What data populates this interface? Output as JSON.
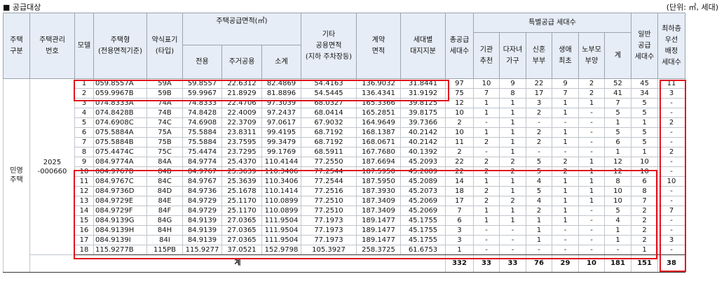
{
  "title": "■ 공급대상",
  "unit_note": "(단위: ㎡, 세대)",
  "headers": {
    "type": "주택\n구분",
    "mgmt_no": "주택관리\n번호",
    "model": "모델",
    "house_type": "주택형\n(전용면적기준)",
    "type_label": "약식표기\n(타입)",
    "supply_area": "주택공급면적(㎡)",
    "exclusive": "전용",
    "residential_common": "주거공용",
    "subtotal": "소계",
    "other_common": "기타\n공용면적\n(지하 주차장등)",
    "contract_area": "계약\n면적",
    "land_share": "세대별\n대지지분",
    "total_supply": "총공급\n세대수",
    "special_supply": "특별공급 세대수",
    "institution": "기관\n추천",
    "multi_child": "다자녀\n가구",
    "newlywed": "신혼\n부부",
    "first_life": "생애\n최초",
    "elderly_parent": "노부모\n부양",
    "special_total": "계",
    "general": "일반\n공급\n세대수",
    "lowest_floor": "최하층\n우선\n배정\n세대수"
  },
  "group": {
    "type": "민영\n주택",
    "mgmt_no": "2025\n-000660"
  },
  "rows": [
    {
      "model": "1",
      "house_type": "059.8557A",
      "type_label": "59A",
      "exclusive": "59.8557",
      "residential_common": "22.6312",
      "subtotal": "82.4869",
      "other_common": "54.4163",
      "contract_area": "136.9032",
      "land_share": "31.8441",
      "total_supply": "97",
      "institution": "10",
      "multi_child": "9",
      "newlywed": "22",
      "first_life": "9",
      "elderly_parent": "2",
      "special_total": "52",
      "general": "45",
      "lowest_floor": "11"
    },
    {
      "model": "2",
      "house_type": "059.9967B",
      "type_label": "59B",
      "exclusive": "59.9967",
      "residential_common": "21.8929",
      "subtotal": "81.8896",
      "other_common": "54.5445",
      "contract_area": "136.4341",
      "land_share": "31.9192",
      "total_supply": "75",
      "institution": "7",
      "multi_child": "8",
      "newlywed": "17",
      "first_life": "7",
      "elderly_parent": "2",
      "special_total": "41",
      "general": "34",
      "lowest_floor": "3"
    },
    {
      "model": "3",
      "house_type": "074.8333A",
      "type_label": "74A",
      "exclusive": "74.8333",
      "residential_common": "22.4706",
      "subtotal": "97.3039",
      "other_common": "68.0327",
      "contract_area": "165.3366",
      "land_share": "39.8125",
      "total_supply": "12",
      "institution": "1",
      "multi_child": "1",
      "newlywed": "3",
      "first_life": "1",
      "elderly_parent": "1",
      "special_total": "7",
      "general": "5",
      "lowest_floor": "-"
    },
    {
      "model": "4",
      "house_type": "074.8428B",
      "type_label": "74B",
      "exclusive": "74.8428",
      "residential_common": "22.4009",
      "subtotal": "97.2437",
      "other_common": "68.0414",
      "contract_area": "165.2851",
      "land_share": "39.8175",
      "total_supply": "10",
      "institution": "1",
      "multi_child": "1",
      "newlywed": "2",
      "first_life": "1",
      "elderly_parent": "-",
      "special_total": "5",
      "general": "5",
      "lowest_floor": "-"
    },
    {
      "model": "5",
      "house_type": "074.6908C",
      "type_label": "74C",
      "exclusive": "74.6908",
      "residential_common": "22.3709",
      "subtotal": "97.0617",
      "other_common": "67.9032",
      "contract_area": "164.9649",
      "land_share": "39.7366",
      "total_supply": "2",
      "institution": "-",
      "multi_child": "1",
      "newlywed": "-",
      "first_life": "-",
      "elderly_parent": "-",
      "special_total": "1",
      "general": "1",
      "lowest_floor": "2"
    },
    {
      "model": "6",
      "house_type": "075.5884A",
      "type_label": "75A",
      "exclusive": "75.5884",
      "residential_common": "23.8311",
      "subtotal": "99.4195",
      "other_common": "68.7192",
      "contract_area": "168.1387",
      "land_share": "40.2142",
      "total_supply": "10",
      "institution": "1",
      "multi_child": "1",
      "newlywed": "2",
      "first_life": "1",
      "elderly_parent": "-",
      "special_total": "5",
      "general": "5",
      "lowest_floor": "-"
    },
    {
      "model": "7",
      "house_type": "075.5884B",
      "type_label": "75B",
      "exclusive": "75.5884",
      "residential_common": "23.7595",
      "subtotal": "99.3479",
      "other_common": "68.7192",
      "contract_area": "168.0671",
      "land_share": "40.2142",
      "total_supply": "11",
      "institution": "2",
      "multi_child": "1",
      "newlywed": "2",
      "first_life": "1",
      "elderly_parent": "-",
      "special_total": "6",
      "general": "5",
      "lowest_floor": "-"
    },
    {
      "model": "8",
      "house_type": "075.4474C",
      "type_label": "75C",
      "exclusive": "75.4474",
      "residential_common": "23.7295",
      "subtotal": "99.1769",
      "other_common": "68.5911",
      "contract_area": "167.7680",
      "land_share": "40.1392",
      "total_supply": "2",
      "institution": "-",
      "multi_child": "1",
      "newlywed": "-",
      "first_life": "-",
      "elderly_parent": "-",
      "special_total": "1",
      "general": "1",
      "lowest_floor": "2"
    },
    {
      "model": "9",
      "house_type": "084.9774A",
      "type_label": "84A",
      "exclusive": "84.9774",
      "residential_common": "25.4370",
      "subtotal": "110.4144",
      "other_common": "77.2550",
      "contract_area": "187.6694",
      "land_share": "45.2093",
      "total_supply": "22",
      "institution": "2",
      "multi_child": "2",
      "newlywed": "5",
      "first_life": "2",
      "elderly_parent": "1",
      "special_total": "12",
      "general": "10",
      "lowest_floor": "-"
    },
    {
      "model": "10",
      "house_type": "084.9767B",
      "type_label": "84B",
      "exclusive": "84.9767",
      "residential_common": "25.3639",
      "subtotal": "110.3406",
      "other_common": "77.2544",
      "contract_area": "187.5950",
      "land_share": "45.2089",
      "total_supply": "22",
      "institution": "2",
      "multi_child": "2",
      "newlywed": "5",
      "first_life": "2",
      "elderly_parent": "1",
      "special_total": "12",
      "general": "10",
      "lowest_floor": "-"
    },
    {
      "model": "11",
      "house_type": "084.9767C",
      "type_label": "84C",
      "exclusive": "84.9767",
      "residential_common": "25.3639",
      "subtotal": "110.3406",
      "other_common": "77.2544",
      "contract_area": "187.5950",
      "land_share": "45.2089",
      "total_supply": "14",
      "institution": "1",
      "multi_child": "1",
      "newlywed": "4",
      "first_life": "1",
      "elderly_parent": "1",
      "special_total": "8",
      "general": "6",
      "lowest_floor": "10"
    },
    {
      "model": "12",
      "house_type": "084.9736D",
      "type_label": "84D",
      "exclusive": "84.9736",
      "residential_common": "25.1678",
      "subtotal": "110.1414",
      "other_common": "77.2516",
      "contract_area": "187.3930",
      "land_share": "45.2073",
      "total_supply": "18",
      "institution": "2",
      "multi_child": "1",
      "newlywed": "5",
      "first_life": "1",
      "elderly_parent": "1",
      "special_total": "10",
      "general": "8",
      "lowest_floor": "-"
    },
    {
      "model": "13",
      "house_type": "084.9729E",
      "type_label": "84E",
      "exclusive": "84.9729",
      "residential_common": "25.1170",
      "subtotal": "110.0899",
      "other_common": "77.2510",
      "contract_area": "187.3409",
      "land_share": "45.2069",
      "total_supply": "17",
      "institution": "2",
      "multi_child": "2",
      "newlywed": "4",
      "first_life": "1",
      "elderly_parent": "1",
      "special_total": "10",
      "general": "7",
      "lowest_floor": "-"
    },
    {
      "model": "14",
      "house_type": "084.9729F",
      "type_label": "84F",
      "exclusive": "84.9729",
      "residential_common": "25.1170",
      "subtotal": "110.0899",
      "other_common": "77.2510",
      "contract_area": "187.3409",
      "land_share": "45.2069",
      "total_supply": "7",
      "institution": "1",
      "multi_child": "1",
      "newlywed": "2",
      "first_life": "1",
      "elderly_parent": "-",
      "special_total": "5",
      "general": "2",
      "lowest_floor": "7"
    },
    {
      "model": "15",
      "house_type": "084.9139G",
      "type_label": "84G",
      "exclusive": "84.9139",
      "residential_common": "27.0365",
      "subtotal": "111.9504",
      "other_common": "77.1973",
      "contract_area": "189.1477",
      "land_share": "45.1755",
      "total_supply": "6",
      "institution": "1",
      "multi_child": "1",
      "newlywed": "1",
      "first_life": "1",
      "elderly_parent": "-",
      "special_total": "4",
      "general": "2",
      "lowest_floor": "-"
    },
    {
      "model": "16",
      "house_type": "084.9139H",
      "type_label": "84H",
      "exclusive": "84.9139",
      "residential_common": "27.0365",
      "subtotal": "111.9504",
      "other_common": "77.1973",
      "contract_area": "189.1477",
      "land_share": "45.1755",
      "total_supply": "3",
      "institution": "-",
      "multi_child": "-",
      "newlywed": "1",
      "first_life": "-",
      "elderly_parent": "-",
      "special_total": "1",
      "general": "2",
      "lowest_floor": "-"
    },
    {
      "model": "17",
      "house_type": "084.9139I",
      "type_label": "84I",
      "exclusive": "84.9139",
      "residential_common": "27.0365",
      "subtotal": "111.9504",
      "other_common": "77.1973",
      "contract_area": "189.1477",
      "land_share": "45.1755",
      "total_supply": "3",
      "institution": "-",
      "multi_child": "-",
      "newlywed": "1",
      "first_life": "-",
      "elderly_parent": "-",
      "special_total": "1",
      "general": "2",
      "lowest_floor": "3"
    },
    {
      "model": "18",
      "house_type": "115.9277B",
      "type_label": "115PB",
      "exclusive": "115.9277",
      "residential_common": "37.0521",
      "subtotal": "152.9798",
      "other_common": "105.3927",
      "contract_area": "258.3725",
      "land_share": "61.6753",
      "total_supply": "1",
      "institution": "-",
      "multi_child": "-",
      "newlywed": "-",
      "first_life": "-",
      "elderly_parent": "-",
      "special_total": "-",
      "general": "1",
      "lowest_floor": "-"
    }
  ],
  "total": {
    "label": "계",
    "total_supply": "332",
    "institution": "33",
    "multi_child": "33",
    "newlywed": "76",
    "first_life": "29",
    "elderly_parent": "10",
    "special_total": "181",
    "general": "151",
    "lowest_floor": "38"
  },
  "highlight_color": "#e0141e"
}
